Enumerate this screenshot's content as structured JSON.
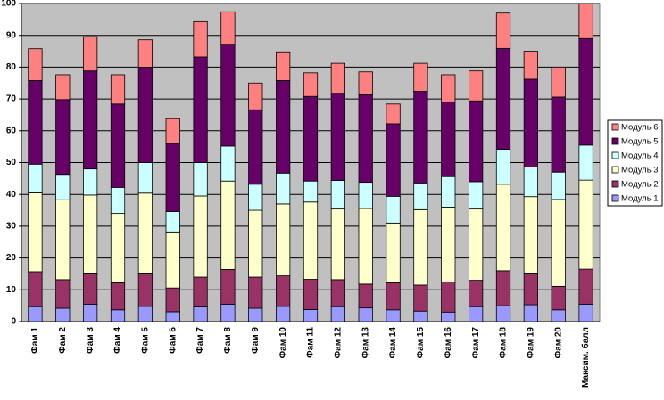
{
  "chart_data": {
    "type": "stacked_bar",
    "categories": [
      "Фам 1",
      "Фам 2",
      "Фам 3",
      "Фам 4",
      "Фам 5",
      "Фам 6",
      "Фам 7",
      "Фам 8",
      "Фам 9",
      "Фам 10",
      "Фам 11",
      "Фам 12",
      "Фам 13",
      "Фам 14",
      "Фам 15",
      "Фам 16",
      "Фам 17",
      "Фам 18",
      "Фам 19",
      "Фам 20",
      "Максим. балл"
    ],
    "series": [
      {
        "name": "Модуль 1",
        "color": "#9999ff",
        "values": [
          4.7,
          4.2,
          5.5,
          3.7,
          4.8,
          3.1,
          4.6,
          5.5,
          4.2,
          4.8,
          3.8,
          4.7,
          4.3,
          3.7,
          3.3,
          3,
          4.7,
          5,
          5.3,
          3.7,
          5.5
        ]
      },
      {
        "name": "Модуль 2",
        "color": "#993366",
        "values": [
          11,
          9,
          9.5,
          8.5,
          10.2,
          7.5,
          9.4,
          10.9,
          9.8,
          9.6,
          9.5,
          8.5,
          7.5,
          8.5,
          8.2,
          9.5,
          8.3,
          11,
          9.7,
          7.4,
          11
        ]
      },
      {
        "name": "Модуль 3",
        "color": "#ffffcc",
        "values": [
          24.8,
          25.1,
          24.8,
          21.8,
          25.4,
          17.6,
          25.5,
          27.8,
          21,
          22.6,
          24.3,
          22.2,
          23.8,
          18.8,
          23.7,
          23.5,
          22.4,
          27.2,
          24.3,
          27.3,
          28
        ]
      },
      {
        "name": "Модуль 4",
        "color": "#ccffff",
        "values": [
          9,
          8,
          8.2,
          8.2,
          9.6,
          6.4,
          10.5,
          11,
          8.2,
          9.7,
          6.6,
          9,
          8.2,
          8.4,
          8.4,
          9.6,
          8.6,
          11,
          9.3,
          8.6,
          11
        ]
      },
      {
        "name": "Модуль 5",
        "color": "#660066",
        "values": [
          26.3,
          23.5,
          30.8,
          26.2,
          30,
          21.4,
          33.2,
          32,
          23.4,
          29.1,
          26.6,
          27.4,
          27.5,
          22.8,
          28.8,
          23.4,
          25.4,
          31.7,
          27.6,
          23.6,
          33.5
        ]
      },
      {
        "name": "Модуль 6",
        "color": "#ff8080",
        "values": [
          10,
          7.8,
          10.8,
          9.2,
          8.6,
          7.8,
          11.1,
          10.2,
          8.4,
          9,
          7.4,
          9.4,
          7.2,
          6.2,
          8.8,
          8.6,
          9.4,
          11.1,
          8.8,
          9.4,
          11
        ]
      }
    ],
    "ylim": [
      0,
      100
    ],
    "yticks": [
      0,
      10,
      20,
      30,
      40,
      50,
      60,
      70,
      80,
      90,
      100
    ],
    "grid": true,
    "legend": "right",
    "plot_background": "#c0c0c0"
  }
}
